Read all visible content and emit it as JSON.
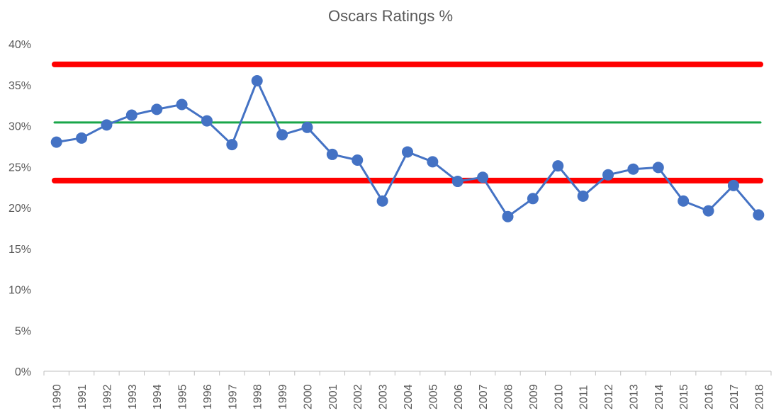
{
  "chart_data": {
    "type": "line",
    "title": "Oscars Ratings %",
    "xlabel": "",
    "ylabel": "",
    "categories": [
      "1990",
      "1991",
      "1992",
      "1993",
      "1994",
      "1995",
      "1996",
      "1997",
      "1998",
      "1999",
      "2000",
      "2001",
      "2002",
      "2003",
      "2004",
      "2005",
      "2006",
      "2007",
      "2008",
      "2009",
      "2010",
      "2011",
      "2012",
      "2013",
      "2014",
      "2015",
      "2016",
      "2017",
      "2018"
    ],
    "y_tick_labels": [
      "0%",
      "5%",
      "10%",
      "15%",
      "20%",
      "25%",
      "30%",
      "35%",
      "40%"
    ],
    "ylim": [
      0,
      40
    ],
    "grid": false,
    "series": [
      {
        "name": "",
        "color": "#4472C4",
        "values": [
          28.0,
          28.5,
          30.1,
          31.3,
          32.0,
          32.6,
          30.6,
          27.7,
          35.5,
          28.9,
          29.8,
          26.5,
          25.8,
          20.8,
          26.8,
          25.6,
          23.2,
          23.7,
          18.9,
          21.1,
          25.1,
          21.4,
          24.0,
          24.7,
          24.9,
          20.8,
          19.6,
          22.7,
          19.1
        ]
      }
    ],
    "reference_lines": [
      {
        "kind": "upper-limit",
        "value": 37.5,
        "color": "#FF0000"
      },
      {
        "kind": "average",
        "value": 30.4,
        "color": "#1AA64A"
      },
      {
        "kind": "lower-limit",
        "value": 23.3,
        "color": "#FF0000"
      }
    ]
  }
}
